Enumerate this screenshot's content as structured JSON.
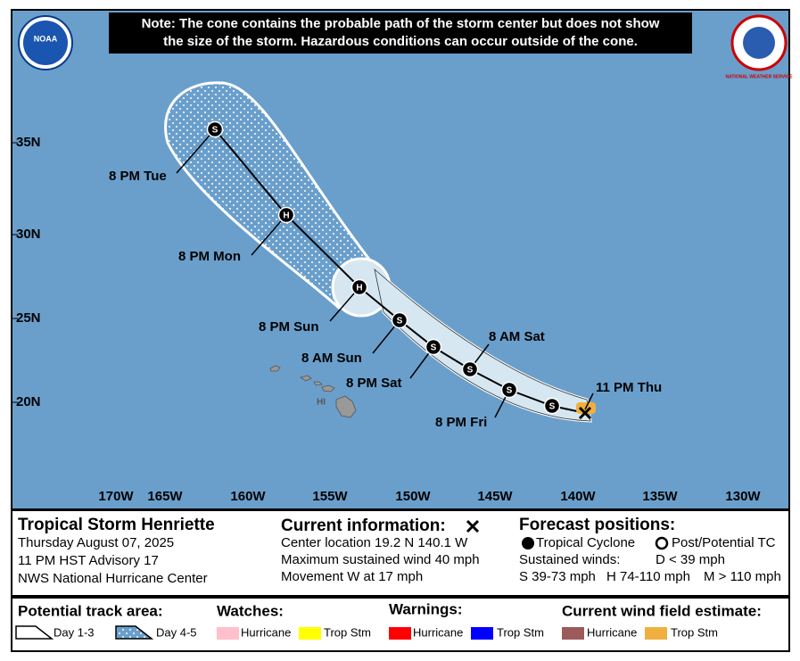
{
  "note_lines": [
    "Note: The cone contains the probable path of the storm center but does not show",
    "the size of the storm. Hazardous conditions can occur outside of the cone."
  ],
  "logos": {
    "noaa": "NOAA",
    "nws": "NATIONAL WEATHER SERVICE"
  },
  "latitude_labels": [
    "35N",
    "30N",
    "25N",
    "20N"
  ],
  "longitude_labels": [
    "170W",
    "165W",
    "160W",
    "155W",
    "150W",
    "145W",
    "140W",
    "135W",
    "130W"
  ],
  "region_label": "HI",
  "current_label": "11 PM Thu",
  "track": [
    {
      "symbol": "S"
    },
    {
      "symbol": "S",
      "label": "8 PM Fri"
    },
    {
      "symbol": "S",
      "label": "8 AM Sat"
    },
    {
      "symbol": "S",
      "label": "8 PM Sat"
    },
    {
      "symbol": "S",
      "label": "8 AM Sun"
    },
    {
      "symbol": "H",
      "label": "8 PM Sun"
    },
    {
      "symbol": "H",
      "label": "8 PM Mon"
    },
    {
      "symbol": "S",
      "label": "8 PM Tue"
    }
  ],
  "info": {
    "storm": {
      "title": "Tropical Storm Henriette",
      "lines": [
        "Thursday August 07, 2025",
        "11 PM HST Advisory 17",
        "NWS National Hurricane Center"
      ]
    },
    "current": {
      "title": "Current information:",
      "lines": [
        "Center location 19.2 N 140.1 W",
        "Maximum sustained wind 40 mph",
        "Movement W at 17 mph"
      ]
    },
    "forecast": {
      "title": "Forecast positions:",
      "tropical": "Tropical Cyclone",
      "post": "Post/Potential TC",
      "winds": "Sustained winds:",
      "d": "D < 39 mph",
      "s": "S 39-73 mph",
      "h": "H 74-110 mph",
      "m": "M > 110 mph"
    }
  },
  "legend": {
    "track_area": {
      "title": "Potential track area:",
      "day13": "Day 1-3",
      "day45": "Day 4-5"
    },
    "watches": {
      "title": "Watches:",
      "hurricane": "Hurricane",
      "trop": "Trop Stm"
    },
    "warnings": {
      "title": "Warnings:",
      "hurricane": "Hurricane",
      "trop": "Trop Stm"
    },
    "wind": {
      "title": "Current wind field estimate:",
      "hurricane": "Hurricane",
      "trop": "Trop Stm"
    }
  }
}
